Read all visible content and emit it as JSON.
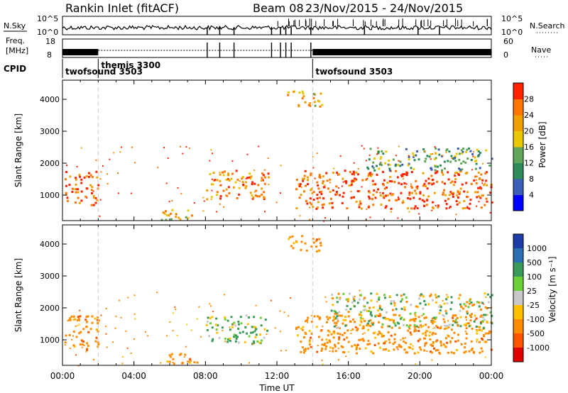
{
  "header": {
    "station": "Rankin Inlet (fitACF)",
    "beam": "Beam 08",
    "date_range": "23/Nov/2015 - 24/Nov/2015"
  },
  "chart_data": [
    {
      "type": "line",
      "panel": "noise",
      "left_label": "N.Sky",
      "right_label": "N.Search",
      "left_ticks": [
        "10^5",
        "10^0"
      ],
      "right_ticks": [
        "10^5",
        "10^0"
      ],
      "series": [
        {
          "name": "N.Sky",
          "style": "solid"
        },
        {
          "name": "N.Search",
          "style": "dotted"
        }
      ]
    },
    {
      "type": "line",
      "panel": "frequency",
      "left_label_lines": [
        "Freq.",
        "[MHz]"
      ],
      "right_label": "Nave",
      "left_ticks": [
        18,
        8
      ],
      "right_ticks": [
        60,
        0
      ]
    },
    {
      "type": "table",
      "panel": "cpid",
      "label": "CPID",
      "segments": [
        {
          "name": "twofsound 3503",
          "start_hour": 0,
          "end_hour": 2
        },
        {
          "name": "themis 3300",
          "start_hour": 2,
          "end_hour": 14
        },
        {
          "name": "twofsound 3503",
          "start_hour": 14,
          "end_hour": 24
        }
      ]
    },
    {
      "type": "heatmap",
      "panel": "power",
      "ylabel": "Slant Range [km]",
      "yticks": [
        1000,
        2000,
        3000,
        4000
      ],
      "ylim": [
        200,
        4600
      ],
      "xlim": [
        0,
        24
      ],
      "colorbar": {
        "label": "Power [dB]",
        "ticks": [
          4,
          8,
          12,
          16,
          20,
          24,
          28
        ],
        "range": [
          0,
          32
        ]
      },
      "scatter_regions": [
        {
          "x": [
            0.1,
            2.0
          ],
          "y": [
            700,
            1800
          ],
          "value": 28
        },
        {
          "x": [
            8.0,
            11.5
          ],
          "y": [
            900,
            1800
          ],
          "value": 24
        },
        {
          "x": [
            5.5,
            7.5
          ],
          "y": [
            250,
            600
          ],
          "value": 20
        },
        {
          "x": [
            13.0,
            24.0
          ],
          "y": [
            600,
            1800
          ],
          "value": 28
        },
        {
          "x": [
            17.0,
            24.0
          ],
          "y": [
            1800,
            2500
          ],
          "value": 12
        },
        {
          "x": [
            12.5,
            14.5
          ],
          "y": [
            3800,
            4300
          ],
          "value": 22
        }
      ]
    },
    {
      "type": "heatmap",
      "panel": "velocity",
      "ylabel": "Slant Range [km]",
      "yticks": [
        1000,
        2000,
        3000,
        4000
      ],
      "ylim": [
        200,
        4600
      ],
      "xlim": [
        0,
        24
      ],
      "xticks": [
        "00:00",
        "04:00",
        "08:00",
        "12:00",
        "16:00",
        "20:00",
        "00:00"
      ],
      "xlabel": "Time UT",
      "colorbar": {
        "label": "Velocity [m s⁻¹]",
        "ticks": [
          1000,
          500,
          100,
          25,
          -25,
          -100,
          -500,
          -1000
        ]
      },
      "scatter_regions": [
        {
          "x": [
            0.1,
            2.0
          ],
          "y": [
            700,
            1800
          ],
          "value": -300
        },
        {
          "x": [
            8.0,
            11.5
          ],
          "y": [
            900,
            1800
          ],
          "value": 150
        },
        {
          "x": [
            5.5,
            7.5
          ],
          "y": [
            250,
            600
          ],
          "value": -300
        },
        {
          "x": [
            13.0,
            24.0
          ],
          "y": [
            600,
            1800
          ],
          "value": -300
        },
        {
          "x": [
            15.0,
            24.0
          ],
          "y": [
            1400,
            2500
          ],
          "value": 0
        },
        {
          "x": [
            12.5,
            14.5
          ],
          "y": [
            3800,
            4300
          ],
          "value": -300
        }
      ]
    }
  ],
  "colors": {
    "power_scale": [
      "#0000ff",
      "#3b5fb5",
      "#2e8b57",
      "#5fa55a",
      "#e8c800",
      "#f0a000",
      "#ff7700",
      "#ff2200"
    ],
    "velocity_scale": [
      "#1e3ca8",
      "#2a6fb0",
      "#3a9a5a",
      "#6ccf38",
      "#c8c8c8",
      "#ffc000",
      "#ff8c00",
      "#ff5500",
      "#e00000"
    ]
  }
}
